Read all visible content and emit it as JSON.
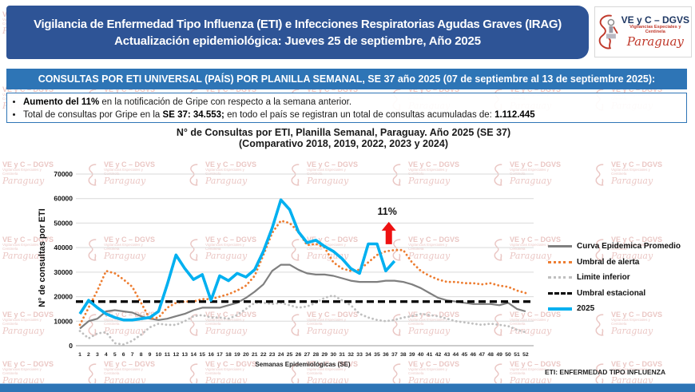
{
  "header": {
    "line1": "Vigilancia de Enfermedad Tipo Influenza (ETI) e Infecciones Respiratorias Agudas Graves (IRAG)",
    "line2": "Actualización epidemiológica: Jueves 25 de septiembre, Año 2025"
  },
  "logo": {
    "title": "VE y C – DGVS",
    "subtitle1": "Vigilancias Especiales y",
    "subtitle2": "Centinela",
    "country": "Paraguay"
  },
  "banner": {
    "text": "CONSULTAS POR ETI UNIVERSAL (PAÍS) POR PLANILLA SEMANAL, SE 37 año 2025 (07 de septiembre al 13 de septiembre 2025):"
  },
  "bullets": [
    {
      "segments": [
        {
          "text": "Aumento del 11%",
          "bold": true
        },
        {
          "text": " en la notificación de Gripe con respecto a la semana anterior.",
          "bold": false
        }
      ]
    },
    {
      "segments": [
        {
          "text": "Total de consultas por Gripe en la ",
          "bold": false
        },
        {
          "text": "SE 37: 34.553;",
          "bold": true
        },
        {
          "text": " en todo el país se registran un total de consultas acumuladas de: ",
          "bold": false
        },
        {
          "text": "1.112.445",
          "bold": true
        }
      ]
    }
  ],
  "chart_data": {
    "type": "line",
    "title": "N° de Consultas por ETI, Planilla Semanal, Paraguay. Año 2025  (SE 37)",
    "subtitle": "(Comparativo 2018, 2019, 2022, 2023 y 2024)",
    "xlabel": "Semanas Epidemiológicas (SE)",
    "ylabel": "N° de consultas por ETI",
    "ylim": [
      0,
      70000
    ],
    "ytick_step": 10000,
    "weeks": {
      "from": 1,
      "to": 52
    },
    "grid": "horizontal",
    "legend_position": "right",
    "series": [
      {
        "name": "Curva Epidemica Promedio",
        "color": "#7f7f7f",
        "style": "solid",
        "values": [
          7000,
          10000,
          11000,
          14000,
          14500,
          14000,
          13500,
          12000,
          11000,
          10500,
          11000,
          12000,
          13000,
          14500,
          15500,
          15500,
          15500,
          16500,
          17500,
          19500,
          22000,
          25000,
          30500,
          33000,
          33000,
          31000,
          29500,
          29000,
          29000,
          28500,
          27500,
          26500,
          26000,
          26000,
          26000,
          26500,
          26500,
          26000,
          25000,
          23500,
          21500,
          19500,
          18500,
          18000,
          17500,
          17000,
          17000,
          17000,
          16500,
          17500,
          15000,
          14000
        ]
      },
      {
        "name": "Umbral de alerta",
        "color": "#ed7d31",
        "style": "dotted",
        "values": [
          8500,
          15500,
          22500,
          30500,
          29500,
          27000,
          24000,
          17500,
          11000,
          11500,
          15500,
          17500,
          18000,
          18000,
          19000,
          19000,
          20000,
          21000,
          22500,
          24500,
          28500,
          37000,
          46000,
          51000,
          50000,
          46500,
          41000,
          41500,
          40000,
          34000,
          31500,
          30500,
          31000,
          34000,
          37000,
          38500,
          39000,
          39000,
          34000,
          30500,
          28500,
          27000,
          26000,
          26000,
          25500,
          25500,
          25000,
          25500,
          24500,
          24000,
          22500,
          21500
        ]
      },
      {
        "name": "Limite inferior",
        "color": "#bfbfbf",
        "style": "dotted",
        "values": [
          6000,
          3000,
          5000,
          5500,
          1000,
          500,
          2000,
          4500,
          7500,
          9000,
          8500,
          8500,
          10000,
          12000,
          12500,
          11500,
          11500,
          11000,
          12500,
          15000,
          17500,
          17500,
          17000,
          17500,
          16500,
          15500,
          16000,
          17500,
          19500,
          20500,
          18500,
          16500,
          13000,
          11500,
          10500,
          10000,
          10500,
          11500,
          12000,
          13000,
          12500,
          12000,
          11000,
          10000,
          9500,
          9000,
          8500,
          9000,
          8500,
          8000,
          6500,
          5500
        ]
      },
      {
        "name": "Umbral estacional",
        "color": "#000000",
        "style": "dashed",
        "constant": 18000
      },
      {
        "name": "2025",
        "color": "#00b0f0",
        "style": "solid",
        "values": [
          13000,
          18500,
          15500,
          13000,
          11500,
          10500,
          10500,
          11000,
          11500,
          14000,
          25000,
          37000,
          31500,
          27000,
          29000,
          18500,
          28500,
          26500,
          29500,
          28000,
          31000,
          38500,
          48000,
          59500,
          55500,
          46500,
          42000,
          43000,
          40500,
          38500,
          35500,
          31500,
          29500,
          41500,
          41500,
          30500,
          34500
        ]
      }
    ],
    "annotation": {
      "label": "11%",
      "week": 36.35,
      "value": 50500
    }
  },
  "footnote": "ETI: ENFERMEDAD TIPO INFLUENZA"
}
